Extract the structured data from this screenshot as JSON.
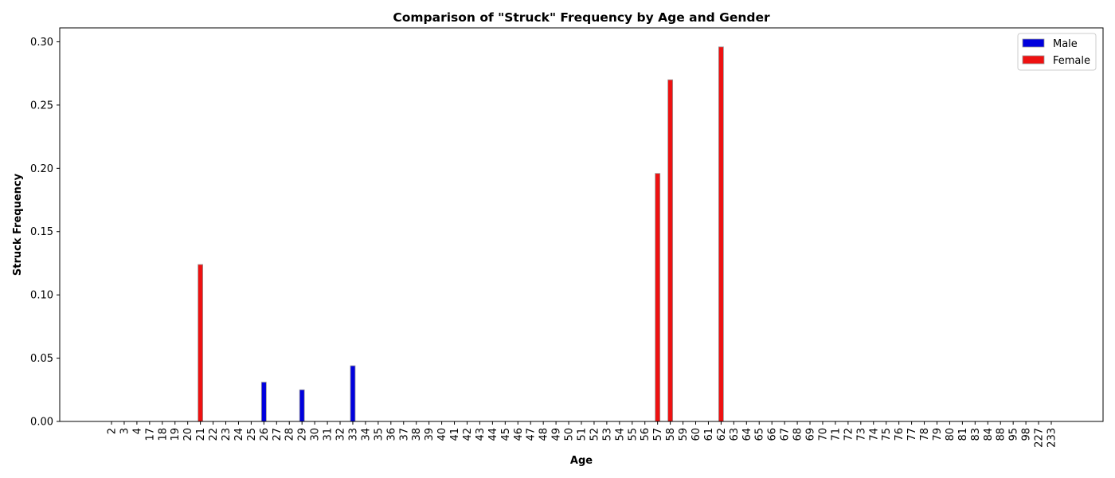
{
  "chart_data": {
    "type": "bar",
    "title": "Comparison of \"Struck\" Frequency by Age and Gender",
    "xlabel": "Age",
    "ylabel": "Struck Frequency",
    "ylim": [
      0,
      0.311
    ],
    "yticks": [
      "0.00",
      "0.05",
      "0.10",
      "0.15",
      "0.20",
      "0.25",
      "0.30"
    ],
    "legend_position": "top-right",
    "categories": [
      "2",
      "3",
      "4",
      "17",
      "18",
      "19",
      "20",
      "21",
      "22",
      "23",
      "24",
      "25",
      "26",
      "27",
      "28",
      "29",
      "30",
      "31",
      "32",
      "33",
      "34",
      "35",
      "36",
      "37",
      "38",
      "39",
      "40",
      "41",
      "42",
      "43",
      "44",
      "45",
      "46",
      "47",
      "48",
      "49",
      "50",
      "51",
      "52",
      "53",
      "54",
      "55",
      "56",
      "57",
      "58",
      "59",
      "60",
      "61",
      "62",
      "63",
      "64",
      "65",
      "66",
      "67",
      "68",
      "69",
      "70",
      "71",
      "72",
      "73",
      "74",
      "75",
      "76",
      "77",
      "78",
      "79",
      "80",
      "81",
      "83",
      "84",
      "88",
      "95",
      "98",
      "227",
      "233"
    ],
    "series": [
      {
        "name": "Male",
        "color": "#0000dd",
        "values": [
          0,
          0,
          0,
          0,
          0,
          0,
          0,
          0,
          0,
          0,
          0,
          0,
          0.031,
          0,
          0,
          0.025,
          0,
          0,
          0,
          0.044,
          0,
          0,
          0,
          0,
          0,
          0,
          0,
          0,
          0,
          0,
          0,
          0,
          0,
          0,
          0,
          0,
          0,
          0,
          0,
          0,
          0,
          0,
          0,
          0,
          0,
          0,
          0,
          0,
          0,
          0,
          0,
          0,
          0,
          0,
          0,
          0,
          0,
          0,
          0,
          0,
          0,
          0,
          0,
          0,
          0,
          0,
          0,
          0,
          0,
          0,
          0,
          0,
          0,
          0,
          0
        ]
      },
      {
        "name": "Female",
        "color": "#ee1111",
        "values": [
          0,
          0,
          0,
          0,
          0,
          0,
          0,
          0.124,
          0,
          0,
          0,
          0,
          0,
          0,
          0,
          0,
          0,
          0,
          0,
          0,
          0,
          0,
          0,
          0,
          0,
          0,
          0,
          0,
          0,
          0,
          0,
          0,
          0,
          0,
          0,
          0,
          0,
          0,
          0,
          0,
          0,
          0,
          0,
          0.196,
          0.27,
          0,
          0,
          0,
          0.296,
          0,
          0,
          0,
          0,
          0,
          0,
          0,
          0,
          0,
          0,
          0,
          0,
          0,
          0,
          0,
          0,
          0,
          0,
          0,
          0,
          0,
          0,
          0,
          0,
          0,
          0
        ]
      }
    ]
  }
}
